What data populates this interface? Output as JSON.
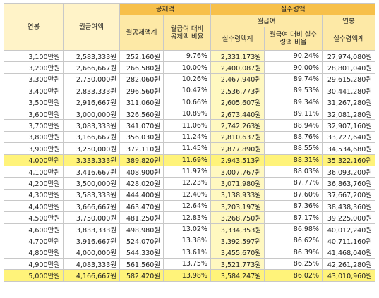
{
  "table": {
    "header": {
      "salary": "연봉",
      "monthly_pay": "월급여액",
      "deduction": "공제액",
      "deduction_total": "월공제액계",
      "deduction_ratio": "월급여 대비 공제액 비율",
      "net": "실수령액",
      "net_monthly": "월급여",
      "net_annual": "연봉",
      "net_total": "실수령액계",
      "net_ratio": "월급여 대비 실수령액 비율",
      "net_annual_total": "실수령액계"
    },
    "rows": [
      [
        "3,100만원",
        "2,583,333원",
        "252,160원",
        "9.76%",
        "2,331,173원",
        "90.24%",
        "27,974,080원"
      ],
      [
        "3,200만원",
        "2,666,667원",
        "266,580원",
        "10.00%",
        "2,400,087원",
        "90.00%",
        "28,801,040원"
      ],
      [
        "3,300만원",
        "2,750,000원",
        "282,060원",
        "10.26%",
        "2,467,940원",
        "89.74%",
        "29,615,280원"
      ],
      [
        "3,400만원",
        "2,833,333원",
        "296,560원",
        "10.47%",
        "2,536,773원",
        "89.53%",
        "30,441,280원"
      ],
      [
        "3,500만원",
        "2,916,667원",
        "311,060원",
        "10.66%",
        "2,605,607원",
        "89.34%",
        "31,267,280원"
      ],
      [
        "3,600만원",
        "3,000,000원",
        "326,560원",
        "10.89%",
        "2,673,440원",
        "89.11%",
        "32,081,280원"
      ],
      [
        "3,700만원",
        "3,083,333원",
        "341,070원",
        "11.06%",
        "2,742,263원",
        "88.94%",
        "32,907,160원"
      ],
      [
        "3,800만원",
        "3,166,667원",
        "356,030원",
        "11.24%",
        "2,810,637원",
        "88.76%",
        "33,727,640원"
      ],
      [
        "3,900만원",
        "3,250,000원",
        "372,110원",
        "11.45%",
        "2,877,890원",
        "88.55%",
        "34,534,680원"
      ],
      [
        "4,000만원",
        "3,333,333원",
        "389,820원",
        "11.69%",
        "2,943,513원",
        "88.31%",
        "35,322,160원"
      ],
      [
        "4,100만원",
        "3,416,667원",
        "408,900원",
        "11.97%",
        "3,007,767원",
        "88.03%",
        "36,093,200원"
      ],
      [
        "4,200만원",
        "3,500,000원",
        "428,020원",
        "12.23%",
        "3,071,980원",
        "87.77%",
        "36,863,760원"
      ],
      [
        "4,300만원",
        "3,583,333원",
        "444,400원",
        "12.40%",
        "3,138,933원",
        "87.60%",
        "37,667,200원"
      ],
      [
        "4,400만원",
        "3,666,667원",
        "463,470원",
        "12.64%",
        "3,203,197원",
        "87.36%",
        "38,438,360원"
      ],
      [
        "4,500만원",
        "3,750,000원",
        "481,250원",
        "12.83%",
        "3,268,750원",
        "87.17%",
        "39,225,000원"
      ],
      [
        "4,600만원",
        "3,833,333원",
        "498,980원",
        "13.02%",
        "3,334,353원",
        "86.98%",
        "40,012,240원"
      ],
      [
        "4,700만원",
        "3,916,667원",
        "524,070원",
        "13.38%",
        "3,392,597원",
        "86.62%",
        "40,711,160원"
      ],
      [
        "4,800만원",
        "4,000,000원",
        "544,330원",
        "13.61%",
        "3,455,670원",
        "86.39%",
        "41,468,040원"
      ],
      [
        "4,900만원",
        "4,083,333원",
        "561,560원",
        "13.75%",
        "3,521,773원",
        "86.25%",
        "42,261,280원"
      ],
      [
        "5,000만원",
        "4,166,667원",
        "582,420원",
        "13.98%",
        "3,584,247원",
        "86.02%",
        "43,010,960원"
      ]
    ]
  }
}
